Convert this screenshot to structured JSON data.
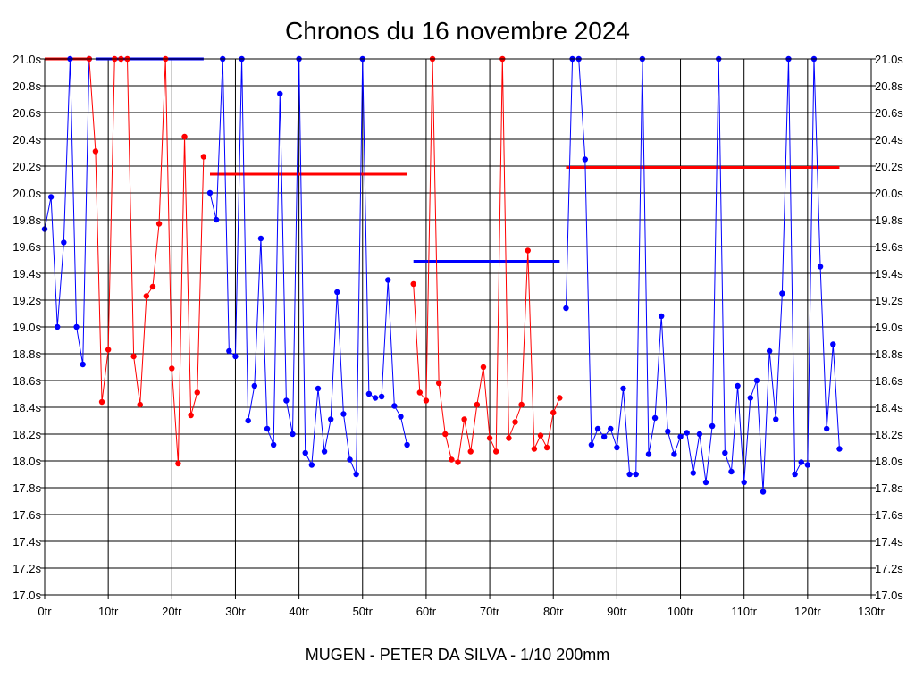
{
  "chart_data": {
    "type": "line",
    "title": "Chronos du 16 novembre 2024",
    "xlabel": "MUGEN - PETER DA SILVA - 1/10 200mm",
    "ylabel": "",
    "xlim": [
      0,
      130
    ],
    "ylim": [
      17.0,
      21.0
    ],
    "grid": true,
    "x_ticks": [
      "0tr",
      "10tr",
      "20tr",
      "30tr",
      "40tr",
      "50tr",
      "60tr",
      "70tr",
      "80tr",
      "90tr",
      "100tr",
      "110tr",
      "120tr",
      "130tr"
    ],
    "y_ticks": [
      "17.0s",
      "17.2s",
      "17.4s",
      "17.6s",
      "17.8s",
      "18.0s",
      "18.2s",
      "18.4s",
      "18.6s",
      "18.8s",
      "19.0s",
      "19.2s",
      "19.4s",
      "19.6s",
      "19.8s",
      "20.0s",
      "20.2s",
      "20.4s",
      "20.6s",
      "20.8s",
      "21.0s"
    ],
    "colors": {
      "blue": "#0000ff",
      "red": "#ff0000"
    },
    "series": [
      {
        "color": "blue",
        "laps": [
          0,
          1,
          2,
          3,
          4,
          5,
          6,
          7
        ],
        "values": [
          19.73,
          19.97,
          19.0,
          19.63,
          21.0,
          19.0,
          18.72,
          21.0
        ]
      },
      {
        "color": "red",
        "laps": [
          7,
          8,
          9,
          10,
          11,
          12,
          13,
          14,
          15,
          16,
          17,
          18,
          19,
          20,
          21,
          22,
          23,
          24,
          25
        ],
        "values": [
          21.0,
          20.31,
          18.44,
          18.83,
          21.0,
          21.0,
          21.0,
          18.78,
          18.42,
          19.23,
          19.3,
          19.77,
          21.0,
          18.69,
          17.98,
          20.42,
          18.34,
          18.51,
          20.27
        ]
      },
      {
        "color": "blue",
        "laps": [
          26,
          27,
          28,
          29,
          30,
          31,
          32,
          33,
          34,
          35,
          36,
          37,
          38,
          39,
          40,
          41,
          42,
          43,
          44,
          45,
          46,
          47,
          48,
          49,
          50,
          51,
          52,
          53,
          54,
          55,
          56,
          57
        ],
        "values": [
          20.0,
          19.8,
          21.0,
          18.82,
          18.78,
          21.0,
          18.3,
          18.56,
          19.66,
          18.24,
          18.12,
          20.74,
          18.45,
          18.2,
          21.0,
          18.06,
          17.97,
          18.54,
          18.07,
          18.31,
          19.26,
          18.35,
          18.01,
          17.9,
          21.0,
          18.5,
          18.47,
          18.48,
          19.35,
          18.41,
          18.33,
          18.12
        ]
      },
      {
        "color": "red",
        "laps": [
          58,
          59,
          60,
          61,
          62,
          63,
          64,
          65,
          66,
          67,
          68,
          69,
          70,
          71,
          72,
          73,
          74,
          75,
          76,
          77,
          78,
          79,
          80,
          81
        ],
        "values": [
          19.32,
          18.51,
          18.45,
          21.0,
          18.58,
          18.2,
          18.01,
          17.99,
          18.31,
          18.07,
          18.42,
          18.7,
          18.17,
          18.07,
          21.0,
          18.17,
          18.29,
          18.42,
          19.57,
          18.09,
          18.19,
          18.1,
          18.36,
          18.47
        ]
      },
      {
        "color": "blue",
        "laps": [
          82,
          83,
          84,
          85,
          86,
          87,
          88,
          89,
          90,
          91,
          92,
          93,
          94,
          95,
          96,
          97,
          98,
          99,
          100,
          101,
          102,
          103,
          104,
          105,
          106,
          107,
          108,
          109,
          110,
          111,
          112,
          113,
          114,
          115,
          116,
          117,
          118,
          119,
          120,
          121,
          122,
          123,
          124,
          125
        ],
        "values": [
          19.14,
          21.0,
          21.0,
          20.25,
          18.12,
          18.24,
          18.18,
          18.24,
          18.1,
          18.54,
          17.9,
          17.9,
          21.0,
          18.05,
          18.32,
          19.08,
          18.22,
          18.05,
          18.18,
          18.21,
          17.91,
          18.2,
          17.84,
          18.26,
          21.0,
          18.06,
          17.92,
          18.56,
          17.84,
          18.47,
          18.6,
          17.77,
          18.82,
          18.31,
          19.25,
          21.0,
          17.9,
          17.99,
          17.97,
          21.0,
          19.45,
          18.24,
          18.87,
          18.09
        ]
      }
    ],
    "reference_lines": [
      {
        "color": "red",
        "x": [
          0,
          7
        ],
        "y": 21.0
      },
      {
        "color": "blue",
        "x": [
          8,
          25
        ],
        "y": 21.0
      },
      {
        "color": "red",
        "x": [
          26,
          57
        ],
        "y": 20.14
      },
      {
        "color": "blue",
        "x": [
          58,
          81
        ],
        "y": 19.49
      },
      {
        "color": "red",
        "x": [
          82,
          125
        ],
        "y": 20.19
      }
    ]
  }
}
